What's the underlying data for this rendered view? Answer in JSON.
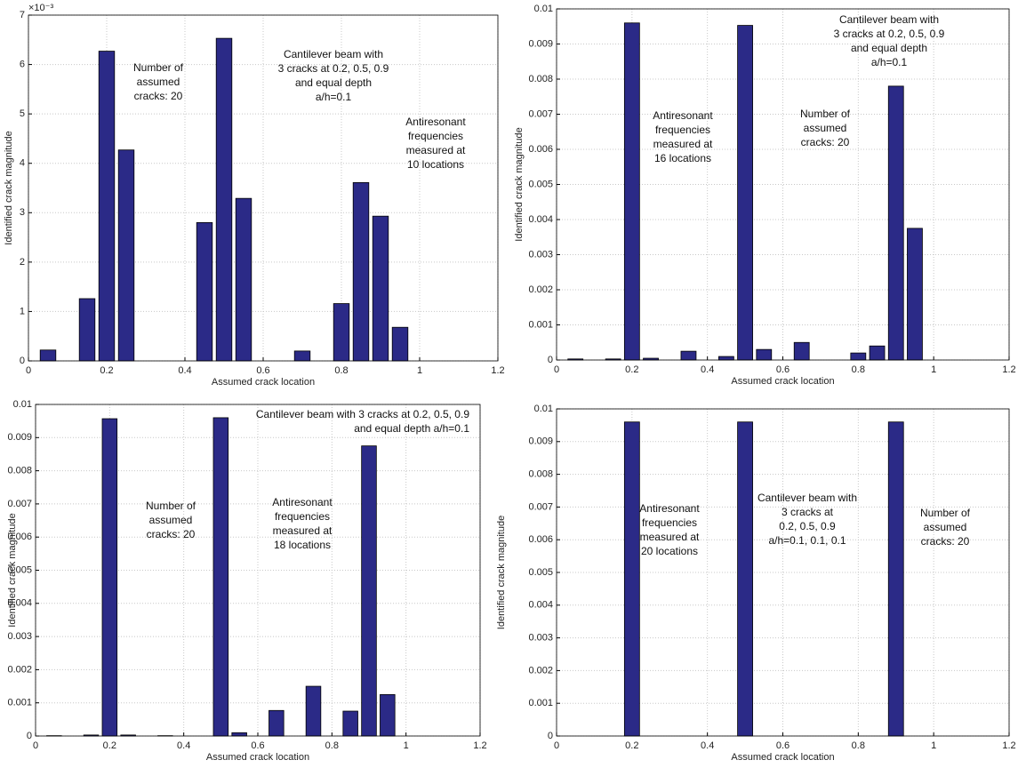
{
  "chart_data": [
    {
      "type": "bar",
      "xlabel": "Assumed crack location",
      "ylabel": "Identified crack magnitude",
      "y_multiplier": "×10⁻³",
      "annotations": [
        [
          "Number of",
          "assumed",
          "cracks: 20"
        ],
        [
          "Cantilever beam with",
          "3 cracks at 0.2, 0.5, 0.9",
          "and equal depth",
          "a/h=0.1"
        ],
        [
          "Antiresonant",
          "frequencies",
          "measured at",
          "10 locations"
        ]
      ],
      "x": [
        0.05,
        0.1,
        0.15,
        0.2,
        0.25,
        0.3,
        0.35,
        0.4,
        0.45,
        0.5,
        0.55,
        0.6,
        0.65,
        0.7,
        0.75,
        0.8,
        0.85,
        0.9,
        0.95,
        1.0
      ],
      "values": [
        0.22,
        0,
        1.26,
        6.27,
        4.27,
        0,
        0,
        0,
        2.8,
        6.53,
        3.29,
        0,
        0,
        0.2,
        0,
        1.16,
        3.61,
        2.93,
        0.68,
        0
      ],
      "color": "#2b2a87",
      "grid": true,
      "xlim": [
        0,
        1.2
      ],
      "xticks": [
        0,
        0.2,
        0.4,
        0.6,
        0.8,
        1,
        1.2
      ],
      "ylim": [
        0,
        7
      ],
      "yticks": [
        0,
        1,
        2,
        3,
        4,
        5,
        6,
        7
      ]
    },
    {
      "type": "bar",
      "xlabel": "Assumed crack location",
      "ylabel": "Identified crack magnitude",
      "annotations": [
        [
          "Cantilever beam with",
          "3 cracks at 0.2, 0.5, 0.9",
          "and equal depth",
          "a/h=0.1"
        ],
        [
          "Antiresonant",
          "frequencies",
          "measured at",
          "16 locations"
        ],
        [
          "Number of",
          "assumed",
          "cracks: 20"
        ]
      ],
      "x": [
        0.05,
        0.1,
        0.15,
        0.2,
        0.25,
        0.3,
        0.35,
        0.4,
        0.45,
        0.5,
        0.55,
        0.6,
        0.65,
        0.7,
        0.75,
        0.8,
        0.85,
        0.9,
        0.95,
        1.0
      ],
      "values": [
        3e-05,
        0,
        3e-05,
        0.0096,
        5e-05,
        0,
        0.00025,
        0,
        0.0001,
        0.00953,
        0.0003,
        0,
        0.0005,
        0,
        0,
        0.0002,
        0.0004,
        0.0078,
        0.00375,
        0
      ],
      "color": "#2b2a87",
      "grid": true,
      "xlim": [
        0,
        1.2
      ],
      "xticks": [
        0,
        0.2,
        0.4,
        0.6,
        0.8,
        1,
        1.2
      ],
      "ylim": [
        0,
        0.01
      ],
      "yticks": [
        0,
        0.001,
        0.002,
        0.003,
        0.004,
        0.005,
        0.006,
        0.007,
        0.008,
        0.009,
        0.01
      ]
    },
    {
      "type": "bar",
      "xlabel": "Assumed crack location",
      "ylabel": "Identified crack magnitude",
      "annotations": [
        [
          "Cantilever beam with 3 cracks at 0.2, 0.5, 0.9",
          "and equal depth a/h=0.1"
        ],
        [
          "Number of",
          "assumed",
          "cracks: 20"
        ],
        [
          "Antiresonant",
          "frequencies",
          "measured at",
          "18 locations"
        ]
      ],
      "x": [
        0.05,
        0.1,
        0.15,
        0.2,
        0.25,
        0.3,
        0.35,
        0.4,
        0.45,
        0.5,
        0.55,
        0.6,
        0.65,
        0.7,
        0.75,
        0.8,
        0.85,
        0.9,
        0.95,
        1.0
      ],
      "values": [
        1e-05,
        0,
        3e-05,
        0.00957,
        3e-05,
        0,
        1e-05,
        0,
        0,
        0.0096,
        0.0001,
        0,
        0.00077,
        0,
        0.0015,
        0,
        0.00075,
        0.00875,
        0.00125,
        0
      ],
      "color": "#2b2a87",
      "grid": true,
      "xlim": [
        0,
        1.2
      ],
      "xticks": [
        0,
        0.2,
        0.4,
        0.6,
        0.8,
        1,
        1.2
      ],
      "ylim": [
        0,
        0.01
      ],
      "yticks": [
        0,
        0.001,
        0.002,
        0.003,
        0.004,
        0.005,
        0.006,
        0.007,
        0.008,
        0.009,
        0.01
      ]
    },
    {
      "type": "bar",
      "xlabel": "Assumed crack location",
      "ylabel": "Identified crack magnitude",
      "annotations": [
        [
          "Antiresonant",
          "frequencies",
          "measured at",
          "20 locations"
        ],
        [
          "Cantilever beam with",
          "3 cracks at",
          "0.2, 0.5, 0.9",
          "a/h=0.1, 0.1, 0.1"
        ],
        [
          "Number of",
          "assumed",
          "cracks: 20"
        ]
      ],
      "x": [
        0.05,
        0.1,
        0.15,
        0.2,
        0.25,
        0.3,
        0.35,
        0.4,
        0.45,
        0.5,
        0.55,
        0.6,
        0.65,
        0.7,
        0.75,
        0.8,
        0.85,
        0.9,
        0.95,
        1.0
      ],
      "values": [
        0,
        0,
        0,
        0.0096,
        0,
        0,
        0,
        0,
        0,
        0.0096,
        0,
        0,
        0,
        0,
        0,
        0,
        0,
        0.0096,
        0,
        0
      ],
      "color": "#2b2a87",
      "grid": true,
      "xlim": [
        0,
        1.2
      ],
      "xticks": [
        0,
        0.2,
        0.4,
        0.6,
        0.8,
        1,
        1.2
      ],
      "ylim": [
        0,
        0.01
      ],
      "yticks": [
        0,
        0.001,
        0.002,
        0.003,
        0.004,
        0.005,
        0.006,
        0.007,
        0.008,
        0.009,
        0.01
      ]
    }
  ]
}
